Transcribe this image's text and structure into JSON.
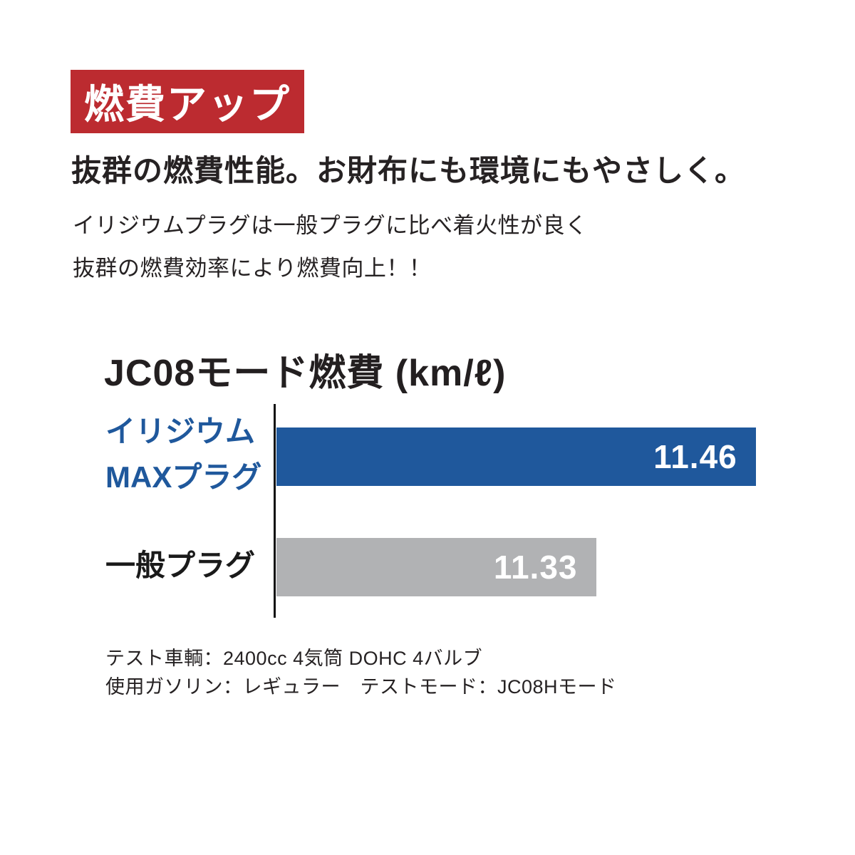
{
  "badge": {
    "label": "燃費アップ",
    "bg_color": "#bc2b30",
    "text_color": "#ffffff"
  },
  "headline": "抜群の燃費性能。お財布にも環境にもやさしく。",
  "description_lines": {
    "line1": "イリジウムプラグは一般プラグに比べ着火性が良く",
    "line2": "抜群の燃費効率により燃費向上！！"
  },
  "chart_data": {
    "type": "bar",
    "orientation": "horizontal",
    "title": "JC08モード燃費 (km/ℓ)",
    "unit": "km/ℓ",
    "categories": [
      [
        "イリジウム",
        "MAXプラグ"
      ],
      [
        "一般プラグ"
      ]
    ],
    "values": [
      11.46,
      11.33
    ],
    "value_labels": [
      "11.46",
      "11.33"
    ],
    "bar_colors": [
      "#1f589c",
      "#b1b2b4"
    ],
    "label_colors": [
      "#1f589c",
      "#1a1a1a"
    ],
    "value_text_color": "#ffffff",
    "xlim": [
      11.07,
      11.47
    ],
    "grid": false,
    "legend": "none",
    "axis_line_color": "#111111"
  },
  "footnotes": {
    "line1": "テスト車輌：2400cc 4気筒 DOHC 4バルブ",
    "line2": "使用ガソリン：レギュラー　テストモード：JC08Hモード"
  }
}
